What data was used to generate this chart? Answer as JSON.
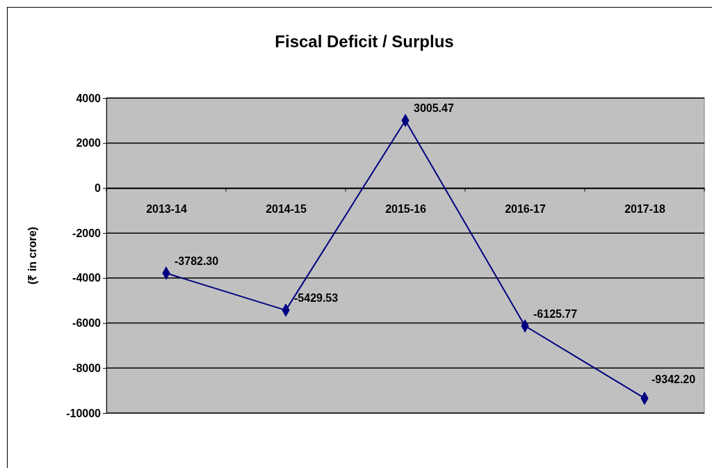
{
  "chart_data": {
    "type": "line",
    "title": "Fiscal Deficit / Surplus",
    "ylabel": "(₹ in crore)",
    "categories": [
      "2013-14",
      "2014-15",
      "2015-16",
      "2016-17",
      "2017-18"
    ],
    "series": [
      {
        "color": "#000080",
        "values": [
          -3782.3,
          -5429.53,
          3005.47,
          -6125.77,
          -9342.2
        ],
        "value_labels": [
          "-3782.30",
          "-5429.53",
          "3005.47",
          "-6125.77",
          "-9342.20"
        ]
      }
    ],
    "ylim": [
      -10000,
      4000
    ],
    "yticks": [
      -10000,
      -8000,
      -6000,
      -4000,
      -2000,
      0,
      2000,
      4000
    ],
    "grid": "y",
    "marker": "diamond",
    "line_style": "solid"
  }
}
